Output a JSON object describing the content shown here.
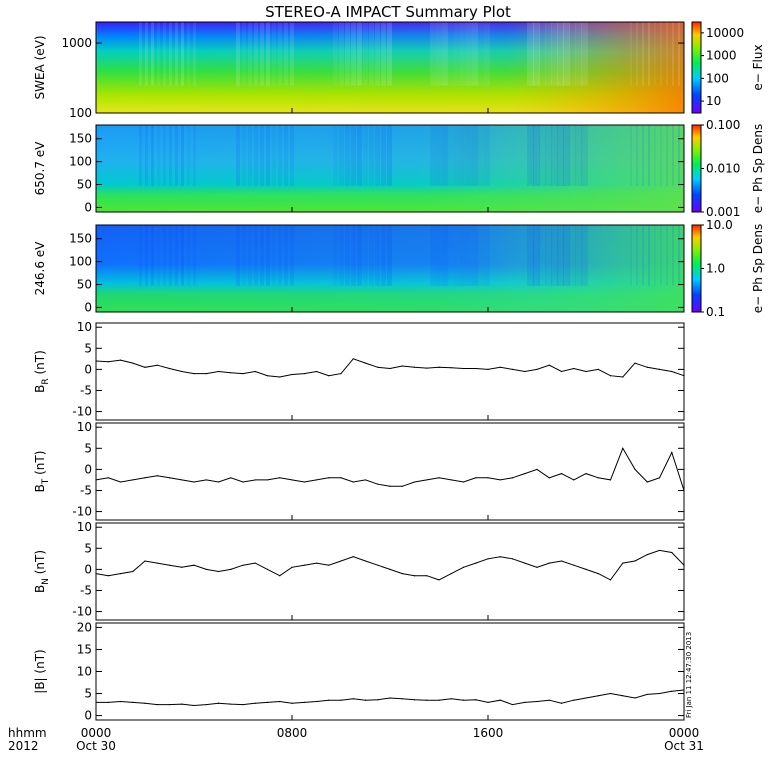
{
  "chart_data": {
    "title": "STEREO-A IMPACT Summary Plot",
    "type": "multi-panel time series (spectrograms + line plots)",
    "x_axis": {
      "row1_label": "hhmm",
      "row2_label": "2012",
      "range_hours": [
        0,
        24
      ],
      "ticks": [
        {
          "hour": 0,
          "time": "0000",
          "date": "Oct 30"
        },
        {
          "hour": 8,
          "time": "0800",
          "date": ""
        },
        {
          "hour": 16,
          "time": "1600",
          "date": ""
        },
        {
          "hour": 24,
          "time": "0000",
          "date": "Oct 31"
        }
      ]
    },
    "spectrograms": [
      {
        "name": "swea",
        "ylabel": "SWEA (eV)",
        "yscale": "log",
        "ylim": [
          100,
          2000
        ],
        "yticks": [
          "100",
          "1000"
        ],
        "colorbar": {
          "label": "e− Flux",
          "scale": "log",
          "range": [
            3,
            30000
          ],
          "ticks": [
            "10",
            "100",
            "1000",
            "10000"
          ]
        },
        "description_levels": {
          "low_energy_flux": 8000,
          "mid_energy_flux": 500,
          "high_energy_flux": 5
        }
      },
      {
        "name": "pad650",
        "ylabel": "650.7 eV",
        "yscale": "linear",
        "ylim": [
          -10,
          180
        ],
        "yticks": [
          "0",
          "50",
          "100",
          "150"
        ],
        "colorbar": {
          "label": "e− Ph Sp Dens",
          "scale": "log",
          "range": [
            0.001,
            0.1
          ],
          "ticks": [
            "0.001",
            "0.010",
            "0.100"
          ]
        }
      },
      {
        "name": "pad246",
        "ylabel": "246.6 eV",
        "yscale": "linear",
        "ylim": [
          -10,
          180
        ],
        "yticks": [
          "0",
          "50",
          "100",
          "150"
        ],
        "colorbar": {
          "label": "e− Ph Sp Dens",
          "scale": "log",
          "range": [
            0.1,
            10
          ],
          "ticks": [
            "0.1",
            "1.0",
            "10.0"
          ]
        }
      }
    ],
    "lines": [
      {
        "name": "BR",
        "ylabel_main": "B",
        "ylabel_sub": "R",
        "ylabel_unit": " (nT)",
        "ylim": [
          -12,
          11
        ],
        "yticks": [
          "-10",
          "-5",
          "0",
          "5",
          "10"
        ],
        "x_hours": [
          0,
          0.5,
          1,
          1.5,
          2,
          2.5,
          3,
          3.5,
          4,
          4.5,
          5,
          5.5,
          6,
          6.5,
          7,
          7.5,
          8,
          8.5,
          9,
          9.5,
          10,
          10.5,
          11,
          11.5,
          12,
          12.5,
          13,
          13.5,
          14,
          14.5,
          15,
          15.5,
          16,
          16.5,
          17,
          17.5,
          18,
          18.5,
          19,
          19.5,
          20,
          20.5,
          21,
          21.5,
          22,
          22.5,
          23,
          23.5,
          24
        ],
        "values": [
          2,
          1.8,
          2.2,
          1.5,
          0.5,
          1,
          0.2,
          -0.5,
          -1,
          -1,
          -0.5,
          -0.8,
          -1,
          -0.5,
          -1.5,
          -1.8,
          -1.2,
          -1,
          -0.5,
          -1.5,
          -1,
          2.5,
          1.5,
          0.5,
          0.2,
          0.8,
          0.5,
          0.3,
          0.5,
          0.4,
          0.2,
          0.2,
          0,
          0.5,
          0,
          -0.5,
          0,
          1,
          -0.5,
          0.2,
          -0.5,
          0,
          -1.5,
          -1.8,
          1.5,
          0.5,
          0,
          -0.5,
          -1.5
        ]
      },
      {
        "name": "BT",
        "ylabel_main": "B",
        "ylabel_sub": "T",
        "ylabel_unit": " (nT)",
        "ylim": [
          -12,
          11
        ],
        "yticks": [
          "-10",
          "-5",
          "0",
          "5",
          "10"
        ],
        "x_hours": [
          0,
          0.5,
          1,
          1.5,
          2,
          2.5,
          3,
          3.5,
          4,
          4.5,
          5,
          5.5,
          6,
          6.5,
          7,
          7.5,
          8,
          8.5,
          9,
          9.5,
          10,
          10.5,
          11,
          11.5,
          12,
          12.5,
          13,
          13.5,
          14,
          14.5,
          15,
          15.5,
          16,
          16.5,
          17,
          17.5,
          18,
          18.5,
          19,
          19.5,
          20,
          20.5,
          21,
          21.5,
          22,
          22.5,
          23,
          23.5,
          24
        ],
        "values": [
          -2.5,
          -2,
          -3,
          -2.5,
          -2,
          -1.5,
          -2,
          -2.5,
          -3,
          -2.5,
          -3,
          -2,
          -3,
          -2.5,
          -2.5,
          -2,
          -2.5,
          -3,
          -2.5,
          -2,
          -2,
          -3,
          -2.5,
          -3.5,
          -4,
          -4,
          -3,
          -2.5,
          -2,
          -2.5,
          -3,
          -2,
          -2,
          -2.5,
          -2,
          -1,
          0,
          -2,
          -1,
          -2.5,
          -1,
          -2,
          -2.5,
          5,
          0,
          -3,
          -2,
          4,
          -5
        ]
      },
      {
        "name": "BN",
        "ylabel_main": "B",
        "ylabel_sub": "N",
        "ylabel_unit": " (nT)",
        "ylim": [
          -12,
          11
        ],
        "yticks": [
          "-10",
          "-5",
          "0",
          "5",
          "10"
        ],
        "x_hours": [
          0,
          0.5,
          1,
          1.5,
          2,
          2.5,
          3,
          3.5,
          4,
          4.5,
          5,
          5.5,
          6,
          6.5,
          7,
          7.5,
          8,
          8.5,
          9,
          9.5,
          10,
          10.5,
          11,
          11.5,
          12,
          12.5,
          13,
          13.5,
          14,
          14.5,
          15,
          15.5,
          16,
          16.5,
          17,
          17.5,
          18,
          18.5,
          19,
          19.5,
          20,
          20.5,
          21,
          21.5,
          22,
          22.5,
          23,
          23.5,
          24
        ],
        "values": [
          -1,
          -1.5,
          -1,
          -0.5,
          2,
          1.5,
          1,
          0.5,
          1,
          0,
          -0.5,
          0,
          1,
          1.5,
          0,
          -1.5,
          0.5,
          1,
          1.5,
          1,
          2,
          3,
          2,
          1,
          0,
          -1,
          -1.5,
          -1.5,
          -2.5,
          -1,
          0.5,
          1.5,
          2.5,
          3,
          2.5,
          1.5,
          0.5,
          1.5,
          2,
          1,
          0,
          -1,
          -2.5,
          1.5,
          2,
          3.5,
          4.5,
          4,
          1
        ]
      },
      {
        "name": "Bmag",
        "ylabel_main": "|B|",
        "ylabel_sub": "",
        "ylabel_unit": " (nT)",
        "ylim": [
          -1,
          21
        ],
        "yticks": [
          "0",
          "5",
          "10",
          "15",
          "20"
        ],
        "x_hours": [
          0,
          0.5,
          1,
          1.5,
          2,
          2.5,
          3,
          3.5,
          4,
          4.5,
          5,
          5.5,
          6,
          6.5,
          7,
          7.5,
          8,
          8.5,
          9,
          9.5,
          10,
          10.5,
          11,
          11.5,
          12,
          12.5,
          13,
          13.5,
          14,
          14.5,
          15,
          15.5,
          16,
          16.5,
          17,
          17.5,
          18,
          18.5,
          19,
          19.5,
          20,
          20.5,
          21,
          21.5,
          22,
          22.5,
          23,
          23.5,
          24
        ],
        "values": [
          3,
          3,
          3.2,
          3,
          2.8,
          2.5,
          2.5,
          2.6,
          2.3,
          2.5,
          2.8,
          2.6,
          2.5,
          2.8,
          3,
          3.2,
          2.8,
          3,
          3.2,
          3.5,
          3.5,
          3.8,
          3.5,
          3.6,
          4,
          3.8,
          3.6,
          3.5,
          3.5,
          3.8,
          3.5,
          3.6,
          3,
          3.5,
          2.5,
          3,
          3.2,
          3.5,
          2.8,
          3.5,
          4,
          4.5,
          5,
          4.5,
          4,
          4.8,
          5,
          5.5,
          5.8
        ]
      }
    ],
    "side_stamp": "Fri Jan 11 12:47:30 2013"
  }
}
